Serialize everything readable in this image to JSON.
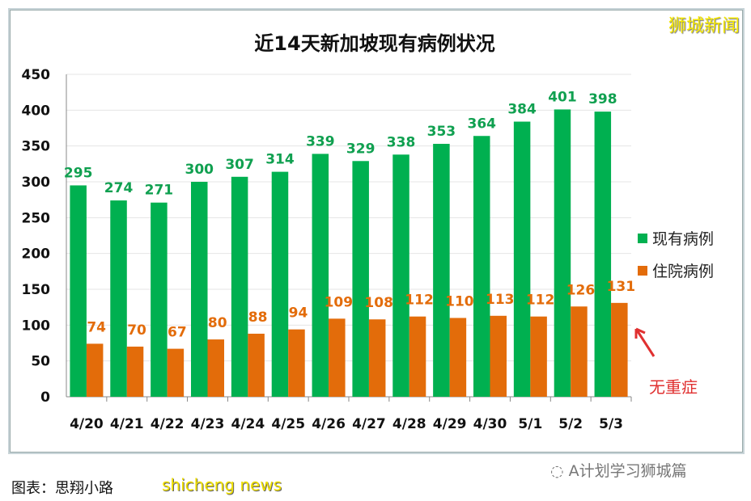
{
  "watermark": "狮城新闻",
  "footer": "图表：思翔小路",
  "footer_watermark": "shicheng news",
  "wechat_label": "A计划学习狮城篇",
  "chart_data": {
    "type": "bar",
    "title": "近14天新加坡现有病例状况",
    "categories": [
      "4/20",
      "4/21",
      "4/22",
      "4/23",
      "4/24",
      "4/25",
      "4/26",
      "4/27",
      "4/28",
      "4/29",
      "4/30",
      "5/1",
      "5/2",
      "5/3"
    ],
    "series": [
      {
        "name": "现有病例",
        "color": "#00b050",
        "values": [
          295,
          274,
          271,
          300,
          307,
          314,
          339,
          329,
          338,
          353,
          364,
          384,
          401,
          398
        ]
      },
      {
        "name": "住院病例",
        "color": "#e36c0a",
        "values": [
          74,
          70,
          67,
          80,
          88,
          94,
          109,
          108,
          112,
          110,
          113,
          112,
          126,
          131
        ]
      }
    ],
    "ylim": [
      0,
      450
    ],
    "yticks": [
      0,
      50,
      100,
      150,
      200,
      250,
      300,
      350,
      400,
      450
    ],
    "grid": true,
    "legend": "right",
    "annotation": "无重症",
    "annotation_color": "#e03030"
  }
}
